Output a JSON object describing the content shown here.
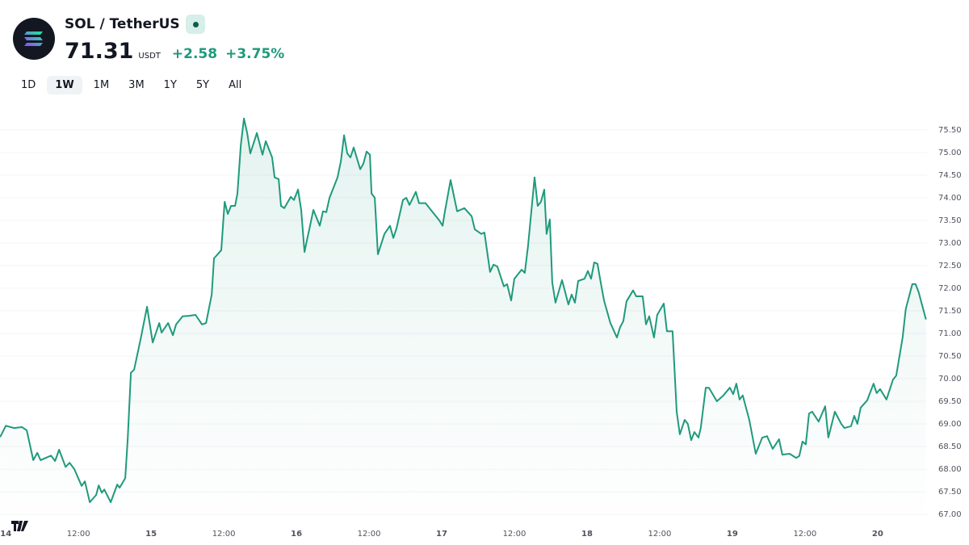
{
  "header": {
    "title": "SOL / TetherUS",
    "price": "71.31",
    "currency": "USDT",
    "change": "+2.58",
    "change_percent": "+3.75%",
    "ranges": [
      {
        "label": "1D",
        "active": false
      },
      {
        "label": "1W",
        "active": true
      },
      {
        "label": "1M",
        "active": false
      },
      {
        "label": "3M",
        "active": false
      },
      {
        "label": "1Y",
        "active": false
      },
      {
        "label": "5Y",
        "active": false
      },
      {
        "label": "All",
        "active": false
      }
    ]
  },
  "chart_data": {
    "type": "area",
    "color": "#1f9a7c",
    "grid": true,
    "xlim": [
      13.96,
      20.34
    ],
    "ylim": [
      66.77,
      76.05
    ],
    "xticks": [
      14,
      {
        "value": 14.5,
        "label": "12:00"
      },
      15,
      {
        "value": 15.5,
        "label": "12:00"
      },
      16,
      {
        "value": 16.5,
        "label": "12:00"
      },
      17,
      {
        "value": 17.5,
        "label": "12:00"
      },
      18,
      {
        "value": 18.5,
        "label": "12:00"
      },
      19,
      {
        "value": 19.5,
        "label": "12:00"
      },
      20
    ],
    "yticks": [
      {
        "value": 67,
        "label": "67.00"
      },
      {
        "value": 67.5,
        "label": "67.50"
      },
      {
        "value": 68,
        "label": "68.00"
      },
      {
        "value": 68.5,
        "label": "68.50"
      },
      {
        "value": 69,
        "label": "69.00"
      },
      {
        "value": 69.5,
        "label": "69.50"
      },
      {
        "value": 70,
        "label": "70.00"
      },
      {
        "value": 70.5,
        "label": "70.50"
      },
      {
        "value": 71,
        "label": "71.00"
      },
      {
        "value": 71.5,
        "label": "71.50"
      },
      {
        "value": 72,
        "label": "72.00"
      },
      {
        "value": 72.5,
        "label": "72.50"
      },
      {
        "value": 73,
        "label": "73.00"
      },
      {
        "value": 73.5,
        "label": "73.50"
      },
      {
        "value": 74,
        "label": "74.00"
      },
      {
        "value": 74.5,
        "label": "74.50"
      },
      {
        "value": 75,
        "label": "75.00"
      },
      {
        "value": 75.5,
        "label": "75.50"
      }
    ],
    "x": [
      13.961,
      14.0,
      14.056,
      14.111,
      14.144,
      14.189,
      14.217,
      14.239,
      14.311,
      14.339,
      14.367,
      14.411,
      14.439,
      14.472,
      14.522,
      14.544,
      14.578,
      14.622,
      14.639,
      14.661,
      14.678,
      14.722,
      14.767,
      14.783,
      14.822,
      14.839,
      14.861,
      14.883,
      14.928,
      14.972,
      15.011,
      15.056,
      15.072,
      15.117,
      15.15,
      15.172,
      15.217,
      15.261,
      15.306,
      15.35,
      15.378,
      15.417,
      15.433,
      15.483,
      15.506,
      15.528,
      15.55,
      15.578,
      15.594,
      15.617,
      15.639,
      15.661,
      15.683,
      15.728,
      15.767,
      15.789,
      15.833,
      15.85,
      15.878,
      15.894,
      15.917,
      15.961,
      15.983,
      16.011,
      16.033,
      16.056,
      16.072,
      16.117,
      16.161,
      16.183,
      16.206,
      16.228,
      16.283,
      16.306,
      16.328,
      16.35,
      16.372,
      16.394,
      16.439,
      16.461,
      16.483,
      16.506,
      16.517,
      16.539,
      16.561,
      16.606,
      16.644,
      16.667,
      16.689,
      16.733,
      16.756,
      16.778,
      16.822,
      16.844,
      16.889,
      16.933,
      16.983,
      17.006,
      17.022,
      17.061,
      17.106,
      17.156,
      17.206,
      17.228,
      17.272,
      17.294,
      17.333,
      17.356,
      17.383,
      17.428,
      17.45,
      17.478,
      17.5,
      17.55,
      17.572,
      17.594,
      17.639,
      17.661,
      17.683,
      17.706,
      17.722,
      17.744,
      17.761,
      17.783,
      17.828,
      17.872,
      17.894,
      17.917,
      17.939,
      17.983,
      18.006,
      18.028,
      18.05,
      18.072,
      18.094,
      18.117,
      18.161,
      18.206,
      18.228,
      18.25,
      18.272,
      18.317,
      18.339,
      18.383,
      18.406,
      18.428,
      18.461,
      18.483,
      18.528,
      18.55,
      18.589,
      18.617,
      18.639,
      18.672,
      18.694,
      18.717,
      18.739,
      18.767,
      18.783,
      18.817,
      18.839,
      18.894,
      18.939,
      18.983,
      19.006,
      19.028,
      19.05,
      19.072,
      19.117,
      19.161,
      19.206,
      19.239,
      19.278,
      19.322,
      19.344,
      19.394,
      19.439,
      19.461,
      19.483,
      19.506,
      19.528,
      19.55,
      19.594,
      19.639,
      19.661,
      19.706,
      19.75,
      19.772,
      19.817,
      19.839,
      19.861,
      19.883,
      19.928,
      19.972,
      19.994,
      20.017,
      20.061,
      20.106,
      20.128,
      20.172,
      20.194,
      20.239,
      20.261,
      20.283,
      20.306,
      20.333
    ],
    "values": [
      68.71,
      68.96,
      68.91,
      68.93,
      68.86,
      68.2,
      68.36,
      68.2,
      68.3,
      68.18,
      68.43,
      68.05,
      68.14,
      68.0,
      67.63,
      67.73,
      67.27,
      67.43,
      67.64,
      67.48,
      67.55,
      67.27,
      67.66,
      67.59,
      67.8,
      68.68,
      70.13,
      70.2,
      70.88,
      71.59,
      70.8,
      71.23,
      71.02,
      71.23,
      70.96,
      71.2,
      71.38,
      71.39,
      71.41,
      71.2,
      71.23,
      71.86,
      72.66,
      72.84,
      73.91,
      73.64,
      73.82,
      73.82,
      74.09,
      75.16,
      75.75,
      75.43,
      74.98,
      75.43,
      74.95,
      75.25,
      74.89,
      74.45,
      74.41,
      73.82,
      73.77,
      74.02,
      73.95,
      74.18,
      73.73,
      72.8,
      73.05,
      73.73,
      73.38,
      73.7,
      73.68,
      74.0,
      74.45,
      74.8,
      75.38,
      74.98,
      74.89,
      75.11,
      74.63,
      74.75,
      75.02,
      74.95,
      74.09,
      74.0,
      72.75,
      73.2,
      73.38,
      73.11,
      73.32,
      73.95,
      74.0,
      73.84,
      74.13,
      73.88,
      73.88,
      73.7,
      73.5,
      73.38,
      73.7,
      74.39,
      73.7,
      73.77,
      73.59,
      73.3,
      73.2,
      73.23,
      72.36,
      72.52,
      72.48,
      72.04,
      72.09,
      71.73,
      72.21,
      72.41,
      72.34,
      72.93,
      74.45,
      73.82,
      73.91,
      74.18,
      73.2,
      73.52,
      72.13,
      71.68,
      72.18,
      71.64,
      71.86,
      71.68,
      72.16,
      72.21,
      72.38,
      72.21,
      72.57,
      72.54,
      72.13,
      71.73,
      71.23,
      70.91,
      71.14,
      71.27,
      71.71,
      71.95,
      71.82,
      71.82,
      71.2,
      71.38,
      70.91,
      71.41,
      71.66,
      71.05,
      71.05,
      69.27,
      68.77,
      69.09,
      69.0,
      68.64,
      68.82,
      68.7,
      68.91,
      69.8,
      69.8,
      69.5,
      69.63,
      69.8,
      69.66,
      69.89,
      69.54,
      69.63,
      69.09,
      68.34,
      68.7,
      68.73,
      68.45,
      68.66,
      68.32,
      68.34,
      68.25,
      68.29,
      68.61,
      68.55,
      69.23,
      69.27,
      69.05,
      69.39,
      68.7,
      69.27,
      69.0,
      68.91,
      68.95,
      69.18,
      69.0,
      69.36,
      69.52,
      69.89,
      69.68,
      69.77,
      69.54,
      69.98,
      70.07,
      70.91,
      71.54,
      72.09,
      72.09,
      71.91,
      71.63,
      71.31
    ]
  }
}
